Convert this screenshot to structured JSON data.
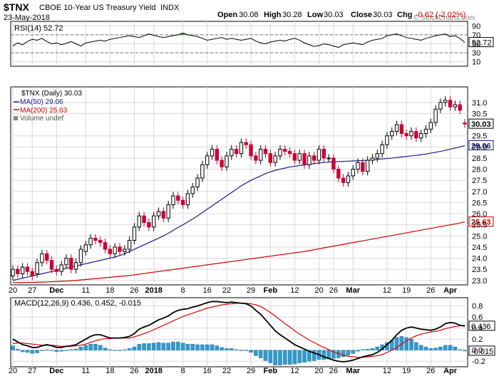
{
  "header": {
    "symbol": "$TNX",
    "name": "CBOE 10-Year US Treasury Yield",
    "exchange": "INDX",
    "date": "23-May-2018",
    "open_label": "Open",
    "open": "30.08",
    "high_label": "High",
    "high": "30.28",
    "low_label": "Low",
    "low": "30.03",
    "close_label": "Close",
    "close": "30.03",
    "chg_label": "Chg",
    "chg": "-0.62 (-2.02%)",
    "chg_color": "#cc0000",
    "watermark": "© StockCharts.com"
  },
  "colors": {
    "up": "#000000",
    "down": "#cc0033",
    "ma50": "#1a1a8c",
    "ma200": "#cc0000",
    "macd": "#000000",
    "signal": "#e00000",
    "histogram": "#3399cc",
    "grid": "#d9d9d9",
    "rsi_fill": "#2e6b2e"
  },
  "chart_data": [
    {
      "type": "line",
      "panel": "rsi",
      "title": "RSI(14) 52.72",
      "series": [
        {
          "name": "RSI(14)",
          "last": 52.72
        }
      ],
      "ylim": [
        0,
        100
      ],
      "yticks": [
        "90",
        "70",
        "50",
        "30",
        "10"
      ],
      "reference_lines": [
        70,
        30
      ],
      "last_label": "52.72",
      "rsi": [
        45,
        52,
        48,
        55,
        60,
        58,
        62,
        55,
        50,
        52,
        48,
        51,
        55,
        50,
        45,
        52,
        54,
        56,
        58,
        56,
        60,
        62,
        64,
        66,
        68,
        66,
        64,
        68,
        72,
        69,
        66,
        64,
        66,
        68,
        70,
        74,
        70,
        68,
        66,
        62,
        58,
        60,
        62,
        64,
        60,
        62,
        60,
        58,
        60,
        62,
        56,
        52,
        50,
        54,
        56,
        58,
        56,
        60,
        62,
        58,
        52,
        48,
        44,
        46,
        50,
        48,
        45,
        42,
        48,
        50,
        52,
        50,
        48,
        54,
        58,
        60,
        62,
        68,
        70,
        72,
        68,
        64,
        62,
        60,
        58,
        62,
        65,
        68,
        70,
        72,
        66,
        68,
        62,
        53
      ]
    },
    {
      "type": "candlestick",
      "panel": "price",
      "title": "$TNX (Daily) 30.03",
      "legend": [
        {
          "name": "$TNX (Daily) 30.03",
          "color": "#000000",
          "marker": "candle"
        },
        {
          "name": "MA(50) 29.06",
          "color": "#1a1a8c",
          "marker": "line"
        },
        {
          "name": "MA(200) 25.63",
          "color": "#cc0000",
          "marker": "line"
        },
        {
          "name": "Volume undef",
          "color": "#888888",
          "marker": "bar"
        }
      ],
      "ylim": [
        22.8,
        31.7
      ],
      "yticks": [
        "31.0",
        "30.5",
        "29.5",
        "29.0",
        "28.5",
        "28.0",
        "27.5",
        "27.0",
        "26.5",
        "26.0",
        "25.5",
        "25.0",
        "24.5",
        "24.0",
        "23.5",
        "23.0"
      ],
      "y_label_values": [
        31.0,
        30.5,
        29.5,
        29.0,
        28.5,
        28.0,
        27.5,
        27.0,
        26.5,
        26.0,
        25.5,
        25.0,
        24.5,
        24.0,
        23.5,
        23.0
      ],
      "last_labels": [
        {
          "text": "30.03",
          "value": 30.03,
          "color": "#000000"
        },
        {
          "text": "29.06",
          "value": 29.06,
          "color": "#1a1a8c"
        },
        {
          "text": "25.63",
          "value": 25.63,
          "color": "#cc0000"
        }
      ],
      "close": [
        23.5,
        23.3,
        23.6,
        23.4,
        23.2,
        23.8,
        24.2,
        23.9,
        23.5,
        23.4,
        23.7,
        24.0,
        23.5,
        23.8,
        24.4,
        24.6,
        24.9,
        24.8,
        24.7,
        24.4,
        24.2,
        24.5,
        24.3,
        24.4,
        24.8,
        25.4,
        25.9,
        25.6,
        25.4,
        25.9,
        26.1,
        25.8,
        26.4,
        26.8,
        26.6,
        26.4,
        26.9,
        27.2,
        27.6,
        28.2,
        28.6,
        28.9,
        28.4,
        28.1,
        28.6,
        28.9,
        28.7,
        29.2,
        29.1,
        28.6,
        28.4,
        28.9,
        28.7,
        28.3,
        28.6,
        28.9,
        28.8,
        28.7,
        28.4,
        28.7,
        28.2,
        28.6,
        28.4,
        28.9,
        28.5,
        28.5,
        28.0,
        27.6,
        27.4,
        27.7,
        28.0,
        28.3,
        27.9,
        28.4,
        28.5,
        28.7,
        29.1,
        29.5,
        29.7,
        30.0,
        29.6,
        29.5,
        29.7,
        29.4,
        29.6,
        29.8,
        30.1,
        30.7,
        31.0,
        31.1,
        30.8,
        30.9,
        30.65,
        30.03
      ],
      "open": [
        23.2,
        23.5,
        23.3,
        23.6,
        23.4,
        23.3,
        23.8,
        24.2,
        23.9,
        23.5,
        23.4,
        23.7,
        24.0,
        23.5,
        23.8,
        24.3,
        24.6,
        24.9,
        24.8,
        24.7,
        24.4,
        24.2,
        24.5,
        24.3,
        24.4,
        24.8,
        25.4,
        25.9,
        25.6,
        25.4,
        25.9,
        26.1,
        25.8,
        26.4,
        26.8,
        26.6,
        26.4,
        26.9,
        27.2,
        27.6,
        28.2,
        28.6,
        28.9,
        28.4,
        28.1,
        28.6,
        28.9,
        28.7,
        29.2,
        29.1,
        28.6,
        28.4,
        28.9,
        28.7,
        28.3,
        28.6,
        28.9,
        28.8,
        28.7,
        28.4,
        28.7,
        28.2,
        28.6,
        28.4,
        28.9,
        28.5,
        28.5,
        28.0,
        27.6,
        27.4,
        27.7,
        28.0,
        28.3,
        27.9,
        28.4,
        28.5,
        28.7,
        29.1,
        29.5,
        29.7,
        30.0,
        29.6,
        29.5,
        29.7,
        29.4,
        29.6,
        29.8,
        30.1,
        30.7,
        31.0,
        31.1,
        30.8,
        30.9,
        30.08
      ],
      "ma50": [
        23.0,
        23.05,
        23.1,
        23.15,
        23.2,
        23.25,
        23.3,
        23.35,
        23.4,
        23.45,
        23.5,
        23.55,
        23.6,
        23.65,
        23.7,
        23.75,
        23.8,
        23.85,
        23.9,
        23.95,
        24.0,
        24.05,
        24.12,
        24.2,
        24.3,
        24.4,
        24.5,
        24.6,
        24.7,
        24.8,
        24.9,
        25.0,
        25.12,
        25.25,
        25.38,
        25.5,
        25.63,
        25.76,
        25.9,
        26.05,
        26.2,
        26.35,
        26.5,
        26.65,
        26.8,
        26.95,
        27.1,
        27.25,
        27.38,
        27.5,
        27.6,
        27.7,
        27.8,
        27.88,
        27.95,
        28.0,
        28.05,
        28.1,
        28.13,
        28.16,
        28.19,
        28.22,
        28.25,
        28.28,
        28.3,
        28.32,
        28.33,
        28.34,
        28.35,
        28.36,
        28.37,
        28.38,
        28.39,
        28.4,
        28.42,
        28.44,
        28.46,
        28.48,
        28.5,
        28.52,
        28.55,
        28.57,
        28.6,
        28.62,
        28.65,
        28.68,
        28.72,
        28.76,
        28.8,
        28.85,
        28.9,
        28.95,
        29.0,
        29.06
      ],
      "ma200": [
        22.9,
        22.9,
        22.9,
        22.91,
        22.91,
        22.92,
        22.92,
        22.93,
        22.94,
        22.95,
        22.96,
        22.97,
        22.98,
        23.0,
        23.02,
        23.04,
        23.06,
        23.08,
        23.1,
        23.12,
        23.14,
        23.16,
        23.18,
        23.2,
        23.22,
        23.25,
        23.28,
        23.31,
        23.34,
        23.37,
        23.4,
        23.43,
        23.46,
        23.49,
        23.52,
        23.55,
        23.58,
        23.61,
        23.64,
        23.67,
        23.7,
        23.73,
        23.76,
        23.79,
        23.82,
        23.85,
        23.88,
        23.91,
        23.94,
        23.97,
        24.0,
        24.03,
        24.06,
        24.09,
        24.12,
        24.15,
        24.18,
        24.21,
        24.24,
        24.27,
        24.3,
        24.34,
        24.38,
        24.42,
        24.46,
        24.5,
        24.54,
        24.58,
        24.62,
        24.66,
        24.7,
        24.74,
        24.78,
        24.82,
        24.86,
        24.9,
        24.94,
        24.98,
        25.02,
        25.06,
        25.1,
        25.14,
        25.18,
        25.22,
        25.26,
        25.3,
        25.34,
        25.38,
        25.42,
        25.46,
        25.5,
        25.54,
        25.58,
        25.63
      ]
    },
    {
      "type": "line",
      "panel": "macd",
      "title": "MACD(12,26,9) 0.436, 0.452, -0.015",
      "legend": [
        {
          "name": "MACD(12,26,9)",
          "color": "#000000"
        },
        {
          "name": "0.436,",
          "color": "#000000"
        },
        {
          "name": "0.452,",
          "color": "#e00000"
        },
        {
          "name": "-0.015",
          "color": "#3399cc"
        }
      ],
      "ylim": [
        -0.3,
        0.95
      ],
      "yticks": [
        "0.8",
        "0.6",
        "0.4",
        "0.2",
        "0.0",
        "-0.2"
      ],
      "last_labels": [
        "0.436",
        "-0.015"
      ],
      "macd": [
        0.2,
        0.15,
        0.1,
        0.08,
        0.05,
        0.05,
        0.08,
        0.1,
        0.08,
        0.05,
        0.05,
        0.07,
        0.08,
        0.1,
        0.15,
        0.2,
        0.25,
        0.28,
        0.28,
        0.25,
        0.22,
        0.22,
        0.22,
        0.23,
        0.25,
        0.3,
        0.38,
        0.42,
        0.45,
        0.5,
        0.55,
        0.58,
        0.62,
        0.68,
        0.72,
        0.74,
        0.75,
        0.78,
        0.8,
        0.83,
        0.86,
        0.88,
        0.88,
        0.87,
        0.86,
        0.87,
        0.86,
        0.85,
        0.84,
        0.8,
        0.72,
        0.65,
        0.55,
        0.45,
        0.35,
        0.28,
        0.22,
        0.16,
        0.1,
        0.06,
        0.02,
        -0.02,
        -0.05,
        -0.08,
        -0.12,
        -0.15,
        -0.18,
        -0.2,
        -0.21,
        -0.2,
        -0.18,
        -0.15,
        -0.12,
        -0.1,
        -0.08,
        -0.04,
        0.02,
        0.1,
        0.18,
        0.28,
        0.36,
        0.4,
        0.42,
        0.4,
        0.38,
        0.37,
        0.36,
        0.38,
        0.42,
        0.48,
        0.5,
        0.49,
        0.45,
        0.436
      ],
      "signal": [
        0.12,
        0.13,
        0.13,
        0.12,
        0.11,
        0.1,
        0.09,
        0.09,
        0.09,
        0.08,
        0.07,
        0.07,
        0.07,
        0.08,
        0.09,
        0.11,
        0.14,
        0.17,
        0.19,
        0.21,
        0.21,
        0.22,
        0.22,
        0.22,
        0.22,
        0.24,
        0.27,
        0.3,
        0.33,
        0.37,
        0.41,
        0.45,
        0.49,
        0.53,
        0.57,
        0.61,
        0.64,
        0.67,
        0.7,
        0.73,
        0.76,
        0.78,
        0.8,
        0.82,
        0.83,
        0.84,
        0.85,
        0.85,
        0.85,
        0.84,
        0.82,
        0.79,
        0.74,
        0.68,
        0.62,
        0.55,
        0.48,
        0.42,
        0.35,
        0.29,
        0.24,
        0.18,
        0.14,
        0.09,
        0.05,
        0.01,
        -0.03,
        -0.06,
        -0.09,
        -0.11,
        -0.12,
        -0.13,
        -0.13,
        -0.12,
        -0.11,
        -0.1,
        -0.08,
        -0.04,
        0.0,
        0.05,
        0.11,
        0.17,
        0.22,
        0.26,
        0.29,
        0.31,
        0.33,
        0.34,
        0.36,
        0.39,
        0.41,
        0.43,
        0.44,
        0.452
      ]
    }
  ],
  "x_axis": {
    "labels": [
      {
        "text": "20",
        "index": 0,
        "bold": false
      },
      {
        "text": "27",
        "index": 4,
        "bold": false
      },
      {
        "text": "Dec",
        "index": 9,
        "bold": true
      },
      {
        "text": "11",
        "index": 15,
        "bold": false
      },
      {
        "text": "18",
        "index": 20,
        "bold": false
      },
      {
        "text": "26",
        "index": 25,
        "bold": false
      },
      {
        "text": "2018",
        "index": 29,
        "bold": true
      },
      {
        "text": "8",
        "index": 35,
        "bold": false
      },
      {
        "text": "16",
        "index": 40,
        "bold": false
      },
      {
        "text": "22",
        "index": 44,
        "bold": false
      },
      {
        "text": "29",
        "index": 49,
        "bold": false
      },
      {
        "text": "Feb",
        "index": 53,
        "bold": true
      },
      {
        "text": "12",
        "index": 58,
        "bold": false
      },
      {
        "text": "20",
        "index": 63,
        "bold": false
      },
      {
        "text": "26",
        "index": 66,
        "bold": false
      },
      {
        "text": "Mar",
        "index": 70,
        "bold": true
      },
      {
        "text": "12",
        "index": 77,
        "bold": false
      },
      {
        "text": "19",
        "index": 81,
        "bold": false
      },
      {
        "text": "26",
        "index": 86,
        "bold": false
      },
      {
        "text": "Apr",
        "index": 90,
        "bold": true
      }
    ]
  }
}
